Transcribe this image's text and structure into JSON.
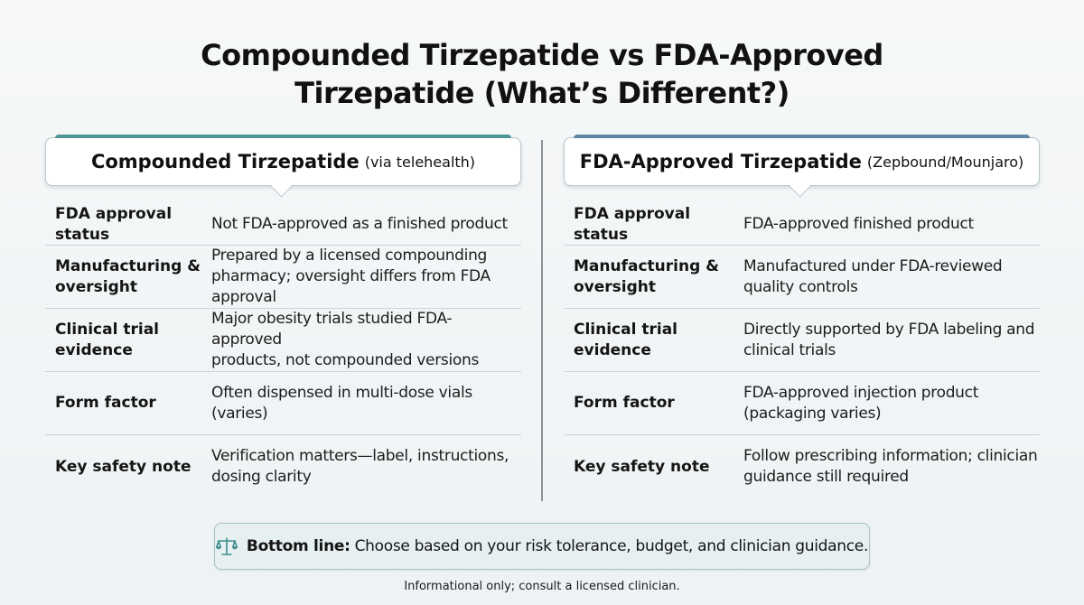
{
  "title": {
    "line1": "Compounded Tirzepatide vs FDA-Approved",
    "line2": "Tirzepatide (What’s Different?)"
  },
  "left": {
    "header_main": "Compounded Tirzepatide",
    "header_sub": "(via telehealth)",
    "rows": [
      {
        "label": "FDA approval status",
        "value": "Not FDA-approved as a finished product"
      },
      {
        "label": "Manufacturing &\noversight",
        "value": "Prepared by a licensed compounding\npharmacy; oversight differs from FDA approval"
      },
      {
        "label": "Clinical trial\nevidence",
        "value": "Major obesity trials studied FDA-approved\nproducts, not compounded versions"
      },
      {
        "label": "Form factor",
        "value": "Often dispensed in multi-dose vials (varies)"
      },
      {
        "label": "Key safety note",
        "value": "Verification matters—label, instructions,\ndosing clarity"
      }
    ]
  },
  "right": {
    "header_main": "FDA-Approved Tirzepatide",
    "header_sub": "(Zepbound/Mounjaro)",
    "rows": [
      {
        "label": "FDA approval status",
        "value": "FDA-approved finished product"
      },
      {
        "label": "Manufacturing &\noversight",
        "value": "Manufactured under FDA-reviewed\nquality controls"
      },
      {
        "label": "Clinical trial\nevidence",
        "value": "Directly supported by FDA labeling and\nclinical trials"
      },
      {
        "label": "Form factor",
        "value": "FDA-approved injection product\n(packaging varies)"
      },
      {
        "label": "Key safety note",
        "value": "Follow prescribing information; clinician\nguidance still required"
      }
    ]
  },
  "bottom_line": {
    "icon": "scale-icon",
    "label": "Bottom line:",
    "text": "Choose based on your risk tolerance, budget, and clinician guidance."
  },
  "footnote": "Informational only; consult a licensed clinician.",
  "colors": {
    "left_accent": "#4f9596",
    "right_accent": "#5e86a6",
    "bottom_bg": "#e7f0f1"
  }
}
